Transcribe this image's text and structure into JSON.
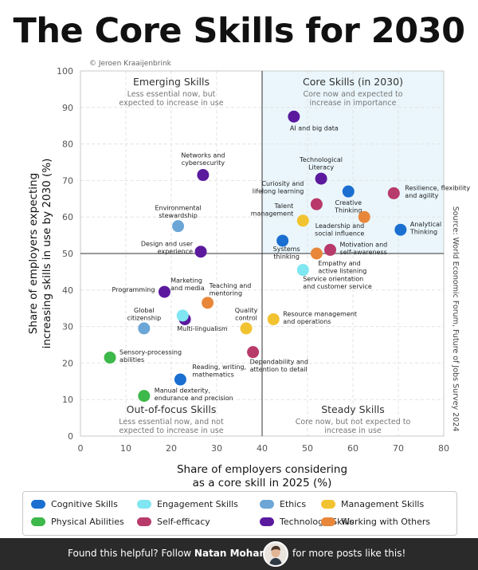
{
  "title": "The Core Skills for 2030",
  "chart_data": {
    "type": "scatter",
    "credit": "© Jeroen Kraaijenbrink",
    "source": "Source: World Economic Forum, Future of Jobs Survey 2024",
    "xlabel": [
      "Share of employers considering",
      "as a core skill in 2025 (%)"
    ],
    "ylabel": [
      "Share of employers expecting",
      "increasing skills in use by 2030 (%)"
    ],
    "xlim": [
      0,
      80
    ],
    "ylim": [
      0,
      100
    ],
    "xticks": [
      0,
      10,
      20,
      30,
      40,
      50,
      60,
      70,
      80
    ],
    "yticks": [
      0,
      10,
      20,
      30,
      40,
      50,
      60,
      70,
      80,
      90,
      100
    ],
    "divider": {
      "x": 40,
      "y": 50
    },
    "quadrants": [
      {
        "id": "emerging",
        "title": "Emerging Skills",
        "desc": [
          "Less essential now, but",
          "expected to increase in use"
        ]
      },
      {
        "id": "core",
        "title": "Core Skills (in 2030)",
        "desc": [
          "Core now and expected to",
          "increase in importance"
        ]
      },
      {
        "id": "out",
        "title": "Out-of-focus Skills",
        "desc": [
          "Less essential now, and not",
          "expected to increase in use"
        ]
      },
      {
        "id": "steady",
        "title": "Steady Skills",
        "desc": [
          "Core now, but not expected to",
          "increase in use"
        ]
      }
    ],
    "categories": [
      {
        "id": "cognitive",
        "name": "Cognitive Skills",
        "color": "#1a6fd1"
      },
      {
        "id": "engagement",
        "name": "Engagement Skills",
        "color": "#7fe6f2"
      },
      {
        "id": "ethics",
        "name": "Ethics",
        "color": "#6ba6d6"
      },
      {
        "id": "management",
        "name": "Management Skills",
        "color": "#f2c331"
      },
      {
        "id": "physical",
        "name": "Physical Abilities",
        "color": "#3db84a"
      },
      {
        "id": "selfefficacy",
        "name": "Self-efficacy",
        "color": "#b83a6a"
      },
      {
        "id": "technology",
        "name": "Technology Skills",
        "color": "#5b1a9e"
      },
      {
        "id": "others",
        "name": "Working with Others",
        "color": "#e8873a"
      }
    ],
    "points": [
      {
        "label": [
          "AI and big data"
        ],
        "cat": "technology",
        "x": 47,
        "y": 87.5,
        "anchor": "start",
        "lx": -5,
        "ly": 17
      },
      {
        "label": [
          "Technological",
          "Literacy"
        ],
        "cat": "technology",
        "x": 53,
        "y": 70.5,
        "anchor": "middle",
        "lx": 0,
        "ly": -21
      },
      {
        "label": [
          "Resilience, flexibility",
          "and agility"
        ],
        "cat": "selfefficacy",
        "x": 69,
        "y": 66.5,
        "anchor": "start",
        "lx": 14,
        "ly": -4
      },
      {
        "label": [
          "Creative",
          "Thinking"
        ],
        "cat": "cognitive",
        "x": 59,
        "y": 67,
        "anchor": "middle",
        "lx": 0,
        "ly": 17
      },
      {
        "label": [
          "Curiosity and",
          "lifelong learning"
        ],
        "cat": "selfefficacy",
        "x": 52,
        "y": 63.5,
        "anchor": "end",
        "lx": -16,
        "ly": -23
      },
      {
        "label": [
          "Talent",
          "management"
        ],
        "cat": "management",
        "x": 49,
        "y": 59,
        "anchor": "end",
        "lx": -12,
        "ly": -16
      },
      {
        "label": [
          "Leadership and",
          "social influence"
        ],
        "cat": "others",
        "x": 62.5,
        "y": 60,
        "anchor": "end",
        "lx": 0,
        "ly": 14
      },
      {
        "label": [
          "Analytical",
          "Thinking"
        ],
        "cat": "cognitive",
        "x": 70.5,
        "y": 56.5,
        "anchor": "start",
        "lx": 12,
        "ly": -4
      },
      {
        "label": [
          "Systems",
          "thinking"
        ],
        "cat": "cognitive",
        "x": 44.5,
        "y": 53.5,
        "anchor": "middle",
        "lx": 5,
        "ly": 13
      },
      {
        "label": [
          "Motivation and",
          "self-awareness"
        ],
        "cat": "selfefficacy",
        "x": 55,
        "y": 51,
        "anchor": "start",
        "lx": 12,
        "ly": -4
      },
      {
        "label": [
          "Empathy and",
          "active listening"
        ],
        "cat": "others",
        "x": 52,
        "y": 50,
        "anchor": "start",
        "lx": 2,
        "ly": 15
      },
      {
        "label": [
          "Service orientation",
          "and customer service"
        ],
        "cat": "engagement",
        "x": 49,
        "y": 45.5,
        "anchor": "start",
        "lx": 0,
        "ly": 14
      },
      {
        "label": [
          "Networks and",
          "cybersecurity"
        ],
        "cat": "technology",
        "x": 27,
        "y": 71.5,
        "anchor": "middle",
        "lx": 0,
        "ly": -22
      },
      {
        "label": [
          "Environmental",
          "stewardship"
        ],
        "cat": "ethics",
        "x": 21.5,
        "y": 57.5,
        "anchor": "middle",
        "lx": 0,
        "ly": -20
      },
      {
        "label": [
          "Design and user",
          "experience"
        ],
        "cat": "technology",
        "x": 26.5,
        "y": 50.5,
        "anchor": "end",
        "lx": -10,
        "ly": -7
      },
      {
        "label": [
          "Marketing",
          "and media"
        ],
        "cat": "technology",
        "x": 23,
        "y": 32,
        "anchor": "start",
        "lx": -18,
        "ly": -46
      },
      {
        "label": [
          "Programming"
        ],
        "cat": "technology",
        "x": 18.5,
        "y": 39.5,
        "anchor": "end",
        "lx": -12,
        "ly": 0
      },
      {
        "label": [
          "Teaching and",
          "mentoring"
        ],
        "cat": "others",
        "x": 28,
        "y": 36.5,
        "anchor": "start",
        "lx": 2,
        "ly": -19
      },
      {
        "label": [
          "Global",
          "citizenship"
        ],
        "cat": "ethics",
        "x": 14,
        "y": 29.5,
        "anchor": "middle",
        "lx": 0,
        "ly": -20
      },
      {
        "label": [
          "Multi-lingualism"
        ],
        "cat": "engagement",
        "x": 22.5,
        "y": 33,
        "anchor": "start",
        "lx": -7,
        "ly": 19
      },
      {
        "label": [
          "Quality",
          "control"
        ],
        "cat": "management",
        "x": 36.5,
        "y": 29.5,
        "anchor": "middle",
        "lx": 0,
        "ly": -20
      },
      {
        "label": [
          "Resource management",
          "and operations"
        ],
        "cat": "management",
        "x": 42.5,
        "y": 32,
        "anchor": "start",
        "lx": 12,
        "ly": -4
      },
      {
        "label": [
          "Dependability and",
          "attention to detail"
        ],
        "cat": "selfefficacy",
        "x": 38,
        "y": 23,
        "anchor": "start",
        "lx": -4,
        "ly": 15
      },
      {
        "label": [
          "Sensory-processing",
          "abilities"
        ],
        "cat": "physical",
        "x": 6.5,
        "y": 21.5,
        "anchor": "start",
        "lx": 12,
        "ly": -4
      },
      {
        "label": [
          "Reading, writing,",
          "mathematics"
        ],
        "cat": "cognitive",
        "x": 22,
        "y": 15.5,
        "anchor": "start",
        "lx": 15,
        "ly": -13
      },
      {
        "label": [
          "Manual dexterity,",
          "endurance and precision"
        ],
        "cat": "physical",
        "x": 14,
        "y": 11,
        "anchor": "start",
        "lx": 13,
        "ly": -4
      }
    ]
  },
  "footer": {
    "prefix": "Found this helpful? Follow ",
    "name": "Natan Mohart",
    "suffix": "for more posts like this!"
  }
}
